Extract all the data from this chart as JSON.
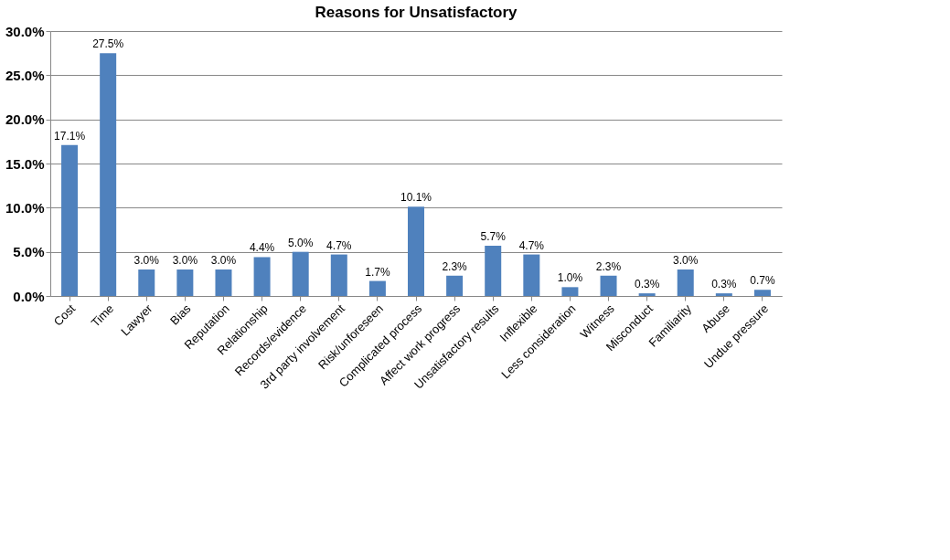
{
  "chart_data": {
    "type": "bar",
    "title": "Reasons for Unsatisfactory",
    "categories": [
      "Cost",
      "Time",
      "Lawyer",
      "Bias",
      "Reputation",
      "Relationship",
      "Records/evidence",
      "3rd party involvement",
      "Risk/unforeseen",
      "Complicated process",
      "Affect work progress",
      "Unsatisfactory results",
      "Inflexible",
      "Less consideration",
      "Witness",
      "Misconduct",
      "Familiarity",
      "Abuse",
      "Undue pressure"
    ],
    "values": [
      17.1,
      27.5,
      3.0,
      3.0,
      3.0,
      4.4,
      5.0,
      4.7,
      1.7,
      10.1,
      2.3,
      5.7,
      4.7,
      1.0,
      2.3,
      0.3,
      3.0,
      0.3,
      0.7
    ],
    "value_labels": [
      "17.1%",
      "27.5%",
      "3.0%",
      "3.0%",
      "3.0%",
      "4.4%",
      "5.0%",
      "4.7%",
      "1.7%",
      "10.1%",
      "2.3%",
      "5.7%",
      "4.7%",
      "1.0%",
      "2.3%",
      "0.3%",
      "3.0%",
      "0.3%",
      "0.7%"
    ],
    "color": "#4f81bd",
    "ylim": [
      0,
      30
    ],
    "yticks": [
      {
        "value": 0,
        "label": "0.0%"
      },
      {
        "value": 5,
        "label": "5.0%"
      },
      {
        "value": 10,
        "label": "10.0%"
      },
      {
        "value": 15,
        "label": "15.0%"
      },
      {
        "value": 20,
        "label": "20.0%"
      },
      {
        "value": 25,
        "label": "25.0%"
      },
      {
        "value": 30,
        "label": "30.0%"
      }
    ],
    "grid": "y"
  }
}
